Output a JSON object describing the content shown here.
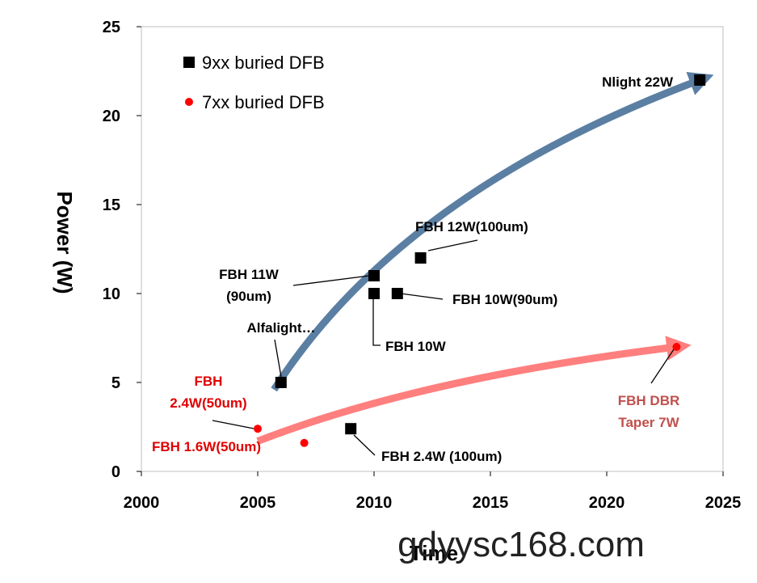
{
  "chart_data": {
    "type": "scatter",
    "xlabel": "Time",
    "ylabel": "Power (W)",
    "xlim": [
      2000,
      2025
    ],
    "ylim": [
      0,
      25
    ],
    "x_ticks": [
      2000,
      2005,
      2010,
      2015,
      2020,
      2025
    ],
    "y_ticks": [
      0,
      5,
      10,
      15,
      20,
      25
    ],
    "grid": false,
    "legend_position": "top-left",
    "series": [
      {
        "name": "9xx buried DFB",
        "marker": "square",
        "color": "#000000",
        "points": [
          {
            "x": 2006,
            "y": 5
          },
          {
            "x": 2010,
            "y": 11
          },
          {
            "x": 2010,
            "y": 10
          },
          {
            "x": 2011,
            "y": 10
          },
          {
            "x": 2012,
            "y": 12
          },
          {
            "x": 2009,
            "y": 2.4
          },
          {
            "x": 2024,
            "y": 22
          }
        ]
      },
      {
        "name": "7xx buried DFB",
        "marker": "circle",
        "color": "#ff0000",
        "points": [
          {
            "x": 2005,
            "y": 2.4
          },
          {
            "x": 2007,
            "y": 1.6
          },
          {
            "x": 2023,
            "y": 7
          }
        ]
      }
    ],
    "trend_arrows": [
      {
        "series": "9xx buried DFB",
        "color": "#5b7fa3",
        "from": [
          2005.7,
          4.6
        ],
        "mid": [
          2013,
          14.5
        ],
        "to": [
          2024,
          22
        ]
      },
      {
        "series": "7xx buried DFB",
        "color": "#ff7f7f",
        "from": [
          2005,
          1.7
        ],
        "mid": [
          2013,
          4.8
        ],
        "to": [
          2023,
          7
        ]
      }
    ],
    "annotations": [
      {
        "lines": [
          "Nlight 22W"
        ],
        "color": "#000000",
        "point": [
          2024,
          22
        ]
      },
      {
        "lines": [
          "FBH 12W(100um)"
        ],
        "color": "#000000",
        "point": [
          2012,
          12
        ]
      },
      {
        "lines": [
          "FBH 11W",
          "(90um)"
        ],
        "color": "#000000",
        "point": [
          2010,
          11
        ]
      },
      {
        "lines": [
          "FBH 10W(90um)"
        ],
        "color": "#000000",
        "point": [
          2011,
          10
        ]
      },
      {
        "lines": [
          "FBH 10W"
        ],
        "color": "#000000",
        "point": [
          2010,
          10
        ]
      },
      {
        "lines": [
          "Alfalight…"
        ],
        "color": "#000000",
        "point": [
          2006,
          5
        ]
      },
      {
        "lines": [
          "FBH",
          "2.4W(50um)"
        ],
        "color": "#e00000",
        "point": [
          2005,
          2.4
        ]
      },
      {
        "lines": [
          "FBH 1.6W(50um)"
        ],
        "color": "#e00000",
        "point": [
          2007,
          1.6
        ]
      },
      {
        "lines": [
          "FBH 2.4W (100um)"
        ],
        "color": "#000000",
        "point": [
          2009,
          2.4
        ]
      },
      {
        "lines": [
          "FBH DBR",
          "Taper 7W"
        ],
        "color": "#c0504d",
        "point": [
          2023,
          7
        ]
      }
    ]
  },
  "watermark": "gdyysc168.com"
}
